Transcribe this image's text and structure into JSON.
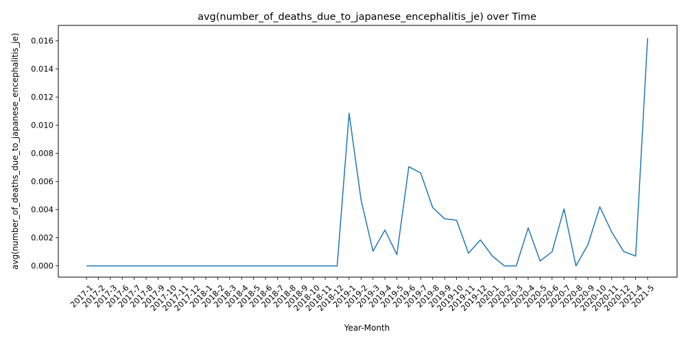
{
  "chart_data": {
    "type": "line",
    "title": "avg(number_of_deaths_due_to_japanese_encephalitis_je) over Time",
    "xlabel": "Year-Month",
    "ylabel": "avg(number_of_deaths_due_to_japanese_encephalitis_je)",
    "ylim": [
      -0.0008,
      0.0171
    ],
    "yticks": [
      0.0,
      0.002,
      0.004,
      0.006,
      0.008,
      0.01,
      0.012,
      0.014,
      0.016
    ],
    "ytick_labels": [
      "0.000",
      "0.002",
      "0.004",
      "0.006",
      "0.008",
      "0.010",
      "0.012",
      "0.014",
      "0.016"
    ],
    "grid": false,
    "line_color": "#1f77b4",
    "categories": [
      "2017-1",
      "2017-2",
      "2017-3",
      "2017-6",
      "2017-7",
      "2017-8",
      "2017-9",
      "2017-10",
      "2017-11",
      "2017-12",
      "2018-1",
      "2018-2",
      "2018-3",
      "2018-4",
      "2018-5",
      "2018-6",
      "2018-7",
      "2018-8",
      "2018-9",
      "2018-10",
      "2018-11",
      "2018-12",
      "2019-1",
      "2019-2",
      "2019-3",
      "2019-4",
      "2019-5",
      "2019-6",
      "2019-7",
      "2019-8",
      "2019-9",
      "2019-10",
      "2019-11",
      "2019-12",
      "2020-1",
      "2020-2",
      "2020-3",
      "2020-4",
      "2020-5",
      "2020-6",
      "2020-7",
      "2020-8",
      "2020-9",
      "2020-10",
      "2020-11",
      "2020-12",
      "2021-4",
      "2021-5"
    ],
    "series": [
      {
        "values": [
          0,
          0,
          0,
          0,
          0,
          0,
          0,
          0,
          0,
          0,
          0,
          0,
          0,
          0,
          0,
          0,
          0,
          0,
          0,
          0,
          0,
          0,
          0.01085,
          0.0047,
          0.00105,
          0.00255,
          0.0008,
          0.00705,
          0.0066,
          0.00415,
          0.00335,
          0.00325,
          0.0009,
          0.00185,
          0.0007,
          0.0,
          0.0,
          0.0027,
          0.00035,
          0.001,
          0.00405,
          0.0,
          0.0015,
          0.0042,
          0.0024,
          0.00102,
          0.0007,
          0.0162
        ]
      }
    ]
  }
}
